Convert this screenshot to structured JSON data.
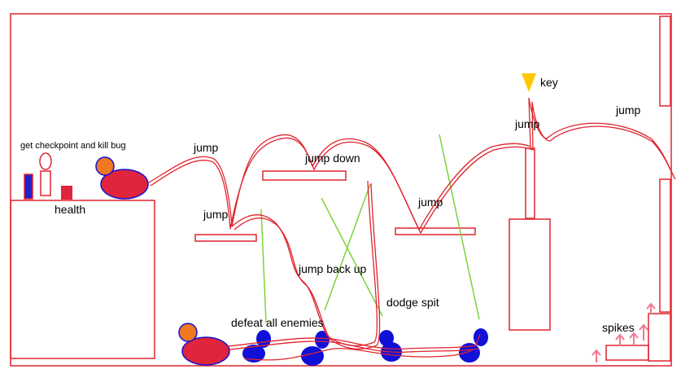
{
  "labels": {
    "checkpoint": "get checkpoint and kill bug",
    "health": "health",
    "jump_1": "jump",
    "jump_2": "jump",
    "jump_down": "jump down",
    "jump_3": "jump",
    "jump_4": "jump",
    "key": "key",
    "jump_5": "jump",
    "jump_back_up": "jump back up",
    "defeat_all_enemies": "defeat all enemies",
    "dodge_spit": "dodge spit",
    "spikes": "spikes"
  },
  "colors": {
    "outline": "#e0242f",
    "enemy": "#1010d8",
    "player_body": "#e0243c",
    "player_head": "#f07820",
    "key": "#ffc800",
    "spit": "#7ad43a",
    "spikes": "#f07890",
    "flag_blue": "#2020cc",
    "health_box": "#e0243c"
  }
}
